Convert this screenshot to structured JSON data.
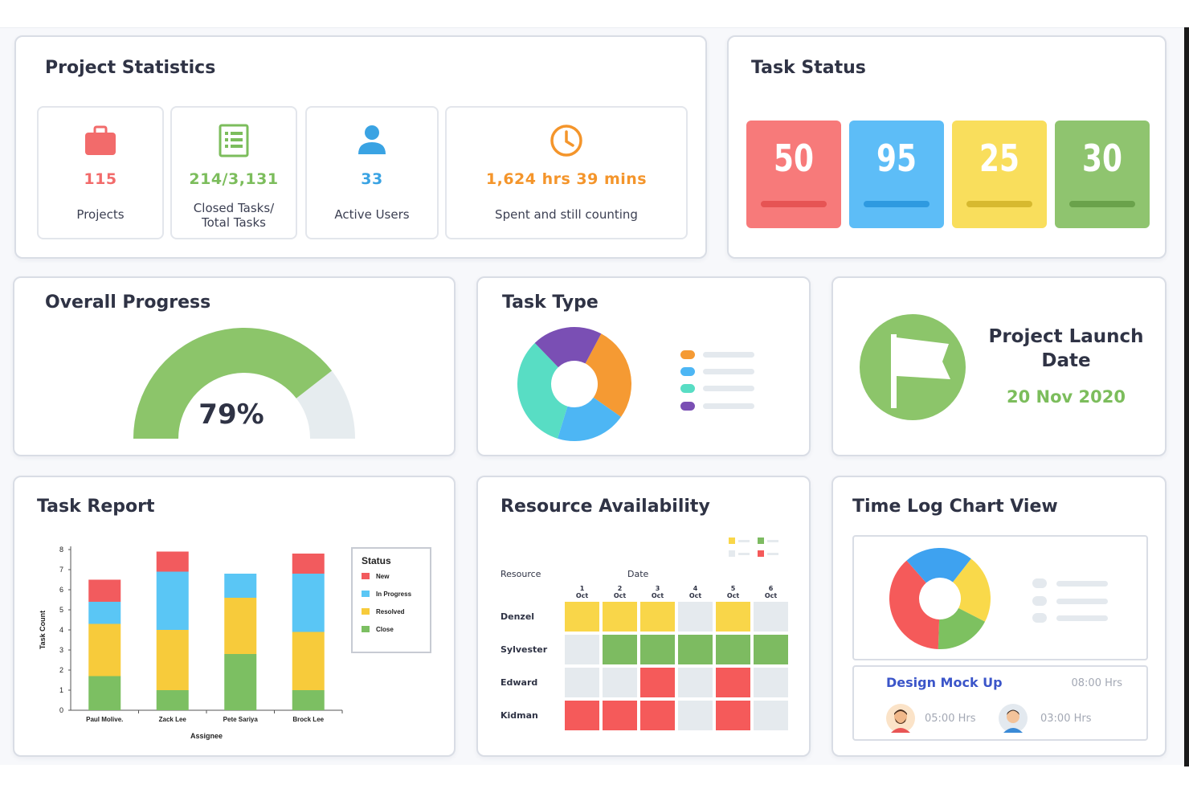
{
  "project_statistics": {
    "title": "Project Statistics",
    "stats": [
      {
        "value": "115",
        "label": "Projects",
        "icon": "briefcase-icon",
        "color": "#f26b6b"
      },
      {
        "value": "214/3,131",
        "label": "Closed Tasks/ Total Tasks",
        "icon": "task-list-icon",
        "color": "#7cbd5c"
      },
      {
        "value": "33",
        "label": "Active Users",
        "icon": "user-icon",
        "color": "#3aa3e3"
      },
      {
        "value": "1,624 hrs 39 mins",
        "label": "Spent and still counting",
        "icon": "clock-icon",
        "color": "#f4952b"
      }
    ]
  },
  "task_status": {
    "title": "Task Status",
    "tiles": [
      {
        "value": "50",
        "color": "#f77a7a",
        "bar_color": "#e65454"
      },
      {
        "value": "95",
        "color": "#5dbdf7",
        "bar_color": "#2e9ae0"
      },
      {
        "value": "25",
        "color": "#f9de5c",
        "bar_color": "#d7b92f"
      },
      {
        "value": "30",
        "color": "#8fc46f",
        "bar_color": "#6aa24b"
      }
    ]
  },
  "overall_progress": {
    "title": "Overall Progress",
    "percent_text": "79%",
    "percent": 79,
    "fill_color": "#8cc56a",
    "track_color": "#e6ecef"
  },
  "task_type": {
    "title": "Task Type",
    "chart_data": {
      "type": "pie",
      "slices": [
        {
          "value": 27,
          "color": "#f59a33"
        },
        {
          "value": 20,
          "color": "#4db6f4"
        },
        {
          "value": 33,
          "color": "#58ddc4"
        },
        {
          "value": 20,
          "color": "#7a4fb4"
        }
      ],
      "legend_colors": [
        "#f59a33",
        "#4db6f4",
        "#58ddc4",
        "#7a4fb4"
      ]
    }
  },
  "project_launch": {
    "title_line1": "Project Launch",
    "title_line2": "Date",
    "date": "20 Nov 2020",
    "icon": "flag-icon",
    "accent": "#7cbd5c"
  },
  "task_report": {
    "title": "Task Report",
    "chart_data": {
      "type": "bar",
      "stacked": true,
      "categories": [
        "Paul Molive.",
        "Zack Lee",
        "Pete Sariya",
        "Brock Lee"
      ],
      "series": [
        {
          "name": "Close",
          "color": "#7cbf62",
          "values": [
            1.7,
            1.0,
            2.8,
            1.0
          ]
        },
        {
          "name": "Resolved",
          "color": "#f7cb3b",
          "values": [
            2.6,
            3.0,
            2.8,
            2.9
          ]
        },
        {
          "name": "In Progress",
          "color": "#5ac6f5",
          "values": [
            1.1,
            2.9,
            1.2,
            2.9
          ]
        },
        {
          "name": "New",
          "color": "#f25b5e",
          "values": [
            1.1,
            1.0,
            0.0,
            1.0
          ]
        }
      ],
      "legend_title": "Status",
      "legend_order": [
        "New",
        "In Progress",
        "Resolved",
        "Close"
      ],
      "ylabel": "Task Count",
      "xlabel": "Assignee",
      "ylim": [
        0,
        8
      ],
      "yticks": [
        "0",
        "1",
        "2",
        "3",
        "4",
        "5",
        "6",
        "7",
        "8"
      ]
    }
  },
  "resource_availability": {
    "title": "Resource Availability",
    "resource_label": "Resource",
    "date_label": "Date",
    "dates": [
      {
        "day": "1",
        "month": "Oct"
      },
      {
        "day": "2",
        "month": "Oct"
      },
      {
        "day": "3",
        "month": "Oct"
      },
      {
        "day": "4",
        "month": "Oct"
      },
      {
        "day": "5",
        "month": "Oct"
      },
      {
        "day": "6",
        "month": "Oct"
      }
    ],
    "rows": [
      {
        "name": "Denzel",
        "cells": [
          "yellow",
          "yellow",
          "yellow",
          "grey",
          "yellow",
          "grey"
        ]
      },
      {
        "name": "Sylvester",
        "cells": [
          "grey",
          "green",
          "green",
          "green",
          "green",
          "green"
        ]
      },
      {
        "name": "Edward",
        "cells": [
          "grey",
          "grey",
          "red",
          "grey",
          "red",
          "grey"
        ]
      },
      {
        "name": "Kidman",
        "cells": [
          "red",
          "red",
          "red",
          "grey",
          "red",
          "grey"
        ]
      }
    ],
    "colors": {
      "yellow": "#f9d649",
      "green": "#7dbb61",
      "red": "#f55a5a",
      "grey": "#e5eaee"
    }
  },
  "time_log": {
    "title": "Time Log Chart View",
    "chart_data": {
      "type": "pie",
      "slices": [
        {
          "value": 22,
          "color": "#f9d94a"
        },
        {
          "value": 18,
          "color": "#7dc160"
        },
        {
          "value": 38,
          "color": "#f55a5a"
        },
        {
          "value": 22,
          "color": "#3ea2f0"
        }
      ]
    },
    "task_name": "Design Mock Up",
    "task_hours": "08:00 Hrs",
    "entries": [
      {
        "hours": "05:00 Hrs",
        "avatar": "avatar-man-beard"
      },
      {
        "hours": "03:00 Hrs",
        "avatar": "avatar-man"
      }
    ]
  }
}
